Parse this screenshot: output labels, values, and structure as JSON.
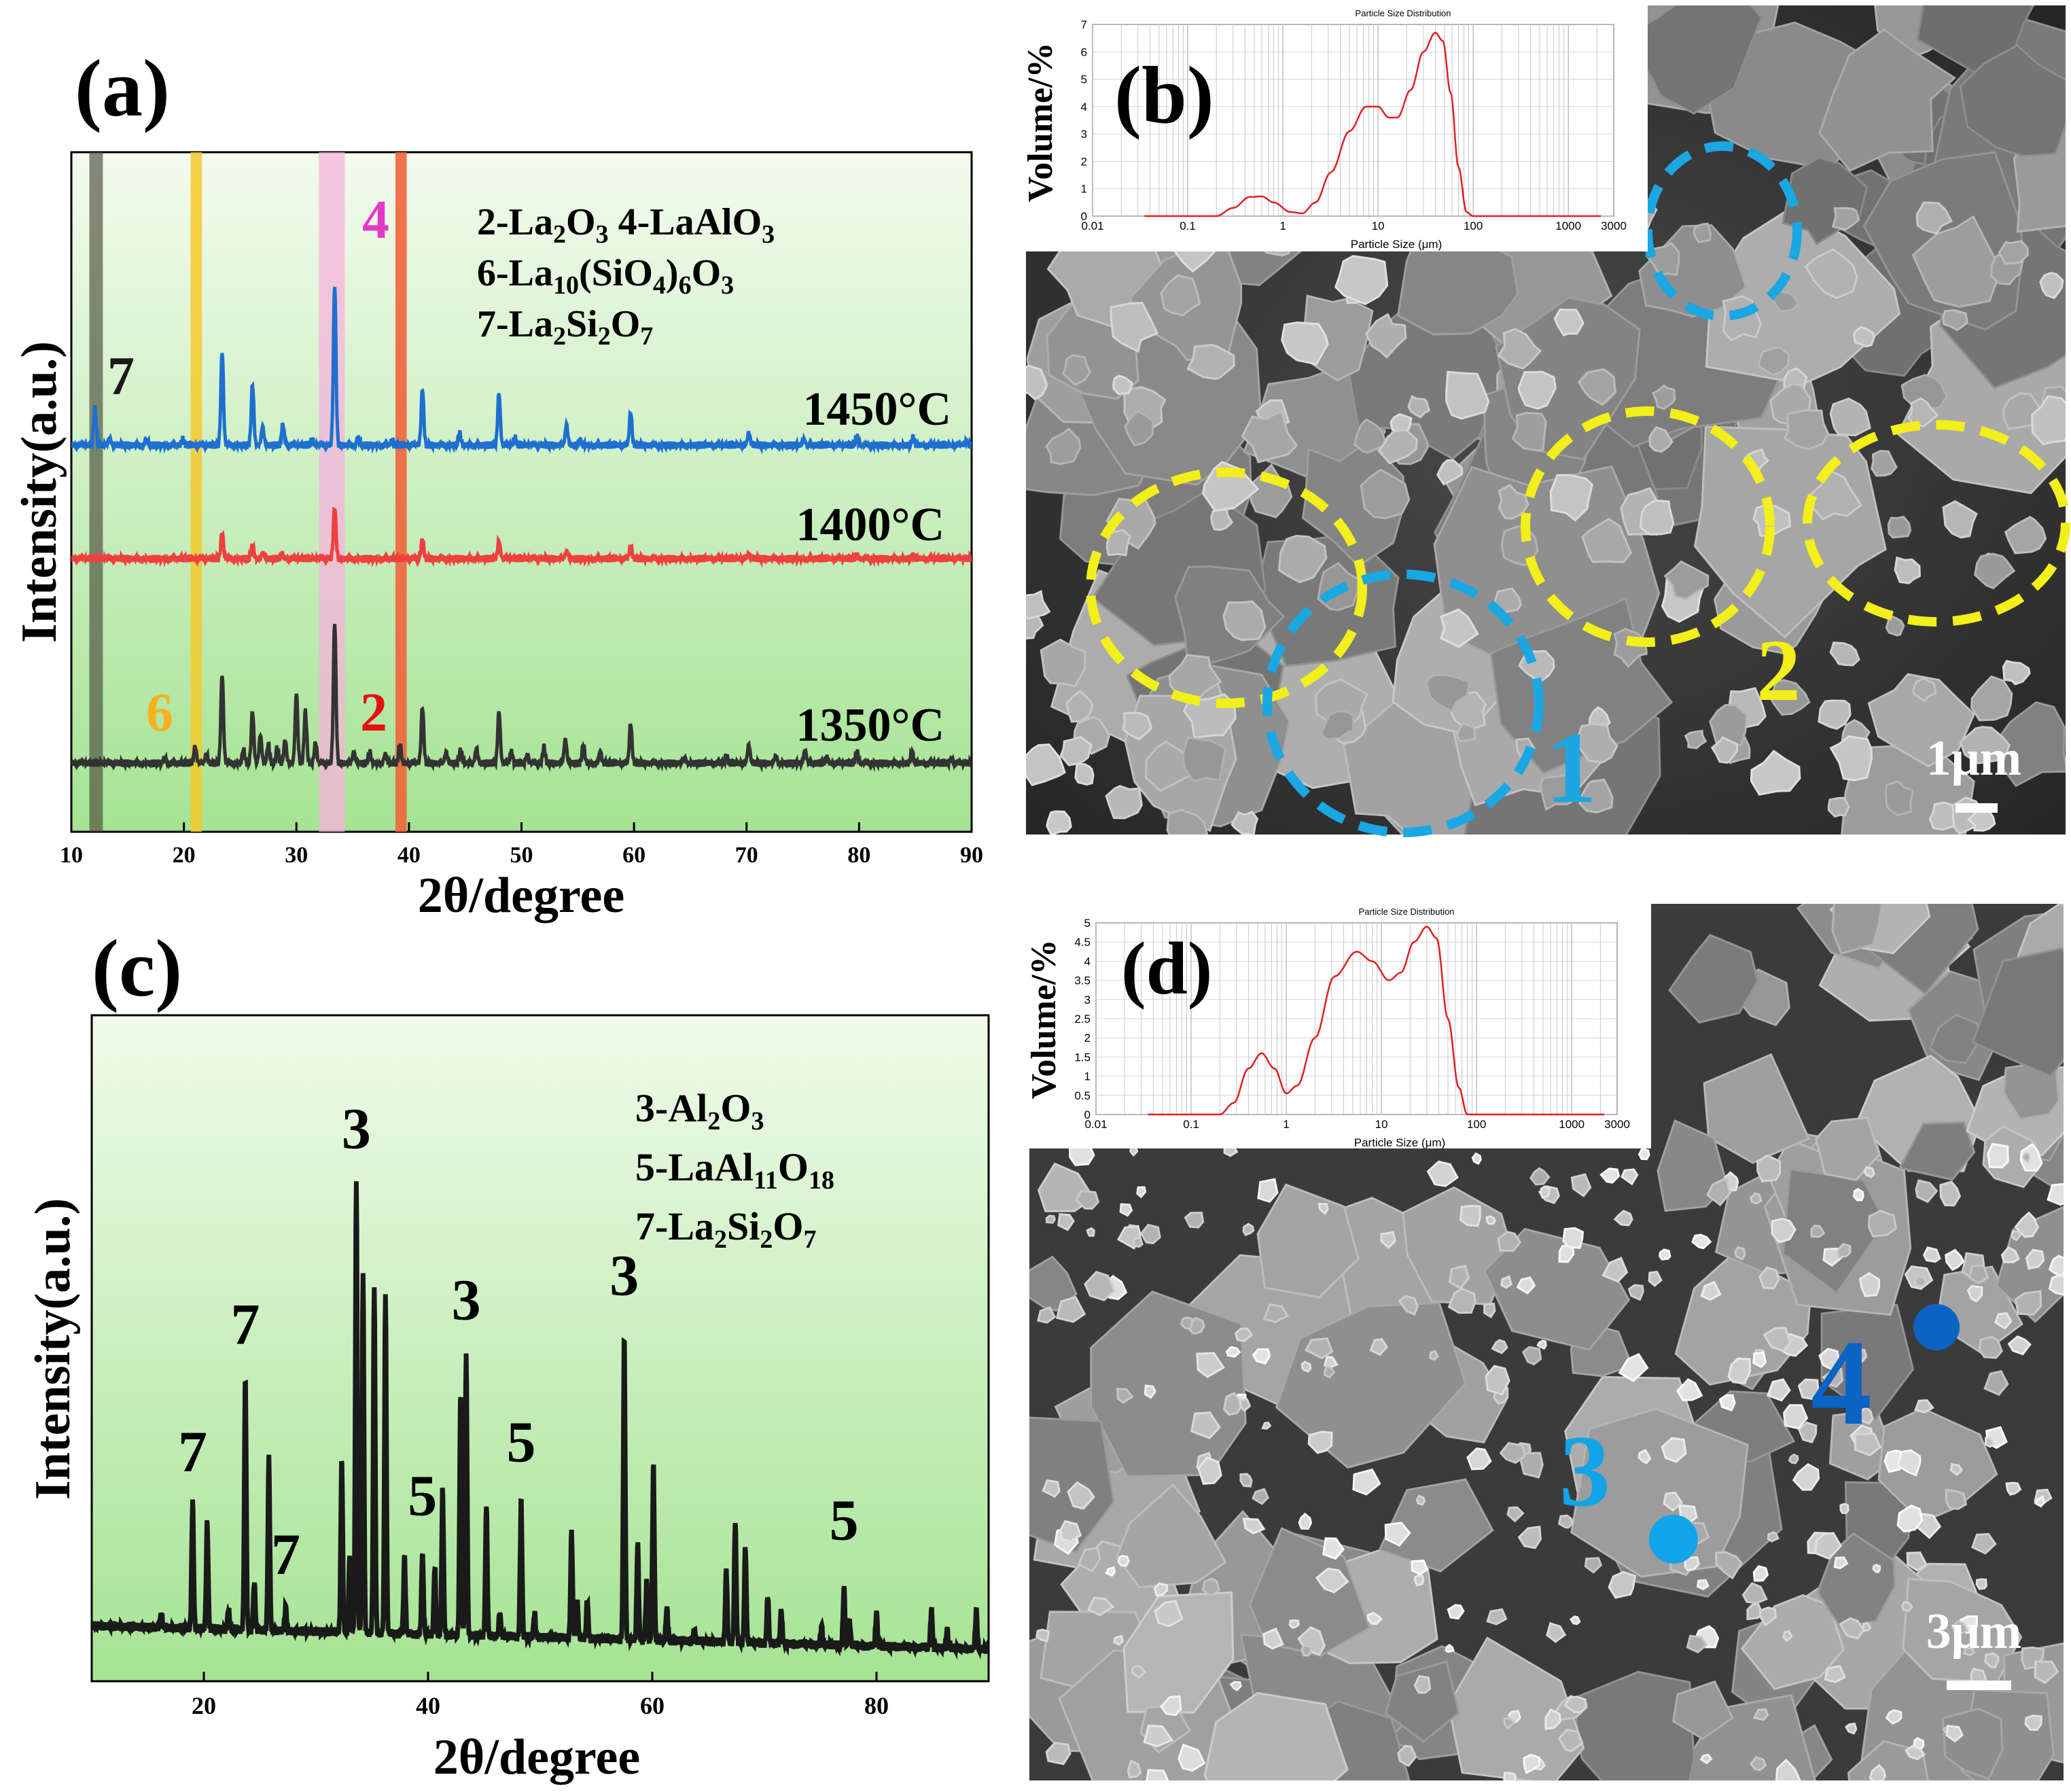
{
  "colors": {
    "bg_light": "#f0fbe6",
    "bg_dark": "#a6e494",
    "black": "#1a1a1a",
    "blue": "#1e6fd0",
    "red": "#ef4040",
    "dark": "#333333",
    "psd_line": "#e02020",
    "yellow_circle": "#f2ef1b",
    "cyan_circle": "#1aa7e3",
    "marker_dark_blue": "#0b63c4",
    "marker_light_blue": "#13a3e8",
    "sem_bg": "#3a3a3a"
  },
  "panel_a": {
    "label": "(a)",
    "xlabel": "2θ/degree",
    "ylabel": "Intensity(a.u.)",
    "legend": [
      {
        "num": "2-La",
        "parts": [
          [
            "2-La",
            ""
          ],
          [
            "2",
            "sub"
          ],
          [
            "O",
            ""
          ],
          [
            "3",
            "sub"
          ],
          [
            "  4-LaAlO",
            ""
          ],
          [
            "3",
            "sub"
          ]
        ]
      },
      {
        "num": "6",
        "parts": [
          [
            "6-La",
            ""
          ],
          [
            "10",
            "sub"
          ],
          [
            "(SiO",
            ""
          ],
          [
            "4",
            "sub"
          ],
          [
            ")",
            ""
          ],
          [
            "6",
            "sub"
          ],
          [
            "O",
            ""
          ],
          [
            "3",
            "sub"
          ]
        ]
      },
      {
        "num": "7",
        "parts": [
          [
            "7-La",
            ""
          ],
          [
            "2",
            "sub"
          ],
          [
            "Si",
            ""
          ],
          [
            "2",
            "sub"
          ],
          [
            "O",
            ""
          ],
          [
            "7",
            "sub"
          ]
        ]
      }
    ],
    "temps": [
      "1450°C",
      "1400°C",
      "1350°C"
    ],
    "markers": [
      {
        "text": "7",
        "color": "#1a1a1a"
      },
      {
        "text": "4",
        "color": "#e33ac6"
      },
      {
        "text": "6",
        "color": "#f5b21e"
      },
      {
        "text": "2",
        "color": "#e41010"
      }
    ],
    "bands": [
      {
        "from": 11.6,
        "to": 12.8,
        "color": "#4a4a3a",
        "opacity": 0.65
      },
      {
        "from": 32.0,
        "to": 34.3,
        "color": "#f6b3dc",
        "opacity": 0.75
      },
      {
        "from": 20.6,
        "to": 21.6,
        "color": "#f5c92a",
        "opacity": 0.85
      },
      {
        "from": 38.8,
        "to": 39.8,
        "color": "#f0643c",
        "opacity": 0.9
      }
    ]
  },
  "panel_c": {
    "label": "(c)",
    "xlabel": "2θ/degree",
    "ylabel": "Intensity(a.u.)",
    "legend": [
      {
        "parts": [
          [
            "3-Al",
            ""
          ],
          [
            "2",
            "sub"
          ],
          [
            "O",
            ""
          ],
          [
            "3",
            "sub"
          ]
        ]
      },
      {
        "parts": [
          [
            "5-LaAl",
            ""
          ],
          [
            "11",
            "sub"
          ],
          [
            "O",
            ""
          ],
          [
            "18",
            "sub"
          ]
        ]
      },
      {
        "parts": [
          [
            "7-La",
            ""
          ],
          [
            "2",
            "sub"
          ],
          [
            "Si",
            ""
          ],
          [
            "2",
            "sub"
          ],
          [
            "O",
            ""
          ],
          [
            "7",
            "sub"
          ]
        ]
      }
    ]
  },
  "panel_b": {
    "label": "(b)",
    "scale_bar": "1μm",
    "particle_labels": [
      "1",
      "2"
    ],
    "psd_title": "Particle Size Distribution",
    "psd_xlabel": "Particle Size (μm)",
    "psd_ylabel": "Volume/%"
  },
  "panel_d": {
    "label": "(d)",
    "scale_bar": "3μm",
    "particle_labels": [
      "3",
      "4"
    ],
    "psd_title": "Particle Size Distribution",
    "psd_xlabel": "Particle Size (μm)",
    "psd_ylabel": "Volume/%"
  },
  "chart_data": [
    {
      "type": "line",
      "title": "",
      "xlabel": "2θ/degree",
      "ylabel": "Intensity(a.u.)",
      "xlim": [
        10,
        90
      ],
      "xticks": [
        10,
        20,
        30,
        40,
        50,
        60,
        70,
        80,
        90
      ],
      "series": [
        {
          "name": "1450°C",
          "color": "#1e6fd0",
          "peaks": [
            [
              12.1,
              0.38
            ],
            [
              13.4,
              0.08
            ],
            [
              16.7,
              0.05
            ],
            [
              19.9,
              0.06
            ],
            [
              23.4,
              1.0
            ],
            [
              26.1,
              0.65
            ],
            [
              27.0,
              0.2
            ],
            [
              28.8,
              0.22
            ],
            [
              31.4,
              0.06
            ],
            [
              33.4,
              1.7
            ],
            [
              35.5,
              0.08
            ],
            [
              38.5,
              0.05
            ],
            [
              41.2,
              0.6
            ],
            [
              44.5,
              0.13
            ],
            [
              48.0,
              0.55
            ],
            [
              49.4,
              0.08
            ],
            [
              54.0,
              0.22
            ],
            [
              55.2,
              0.05
            ],
            [
              59.7,
              0.35
            ],
            [
              70.2,
              0.13
            ],
            [
              75.1,
              0.06
            ],
            [
              79.8,
              0.1
            ],
            [
              84.8,
              0.08
            ],
            [
              89.5,
              0.04
            ]
          ]
        },
        {
          "name": "1400°C",
          "color": "#ef4040",
          "peaks": [
            [
              23.4,
              0.28
            ],
            [
              26.1,
              0.14
            ],
            [
              27.0,
              0.06
            ],
            [
              28.7,
              0.05
            ],
            [
              33.4,
              0.55
            ],
            [
              41.2,
              0.21
            ],
            [
              48.0,
              0.19
            ],
            [
              54.0,
              0.08
            ],
            [
              59.7,
              0.14
            ],
            [
              70.2,
              0.05
            ],
            [
              79.8,
              0.04
            ],
            [
              84.8,
              0.03
            ]
          ]
        },
        {
          "name": "1350°C",
          "color": "#333333",
          "peaks": [
            [
              18.3,
              0.06
            ],
            [
              21.0,
              0.18
            ],
            [
              22.0,
              0.1
            ],
            [
              23.4,
              0.95
            ],
            [
              25.3,
              0.14
            ],
            [
              26.1,
              0.55
            ],
            [
              26.8,
              0.3
            ],
            [
              27.5,
              0.2
            ],
            [
              28.3,
              0.17
            ],
            [
              29.0,
              0.25
            ],
            [
              30.0,
              0.75
            ],
            [
              30.8,
              0.55
            ],
            [
              31.7,
              0.22
            ],
            [
              33.4,
              1.5
            ],
            [
              35.1,
              0.12
            ],
            [
              36.5,
              0.12
            ],
            [
              37.9,
              0.1
            ],
            [
              39.2,
              0.2
            ],
            [
              41.2,
              0.6
            ],
            [
              43.3,
              0.12
            ],
            [
              44.6,
              0.14
            ],
            [
              46.0,
              0.16
            ],
            [
              48.0,
              0.55
            ],
            [
              49.1,
              0.12
            ],
            [
              50.5,
              0.08
            ],
            [
              52.0,
              0.17
            ],
            [
              53.9,
              0.26
            ],
            [
              55.5,
              0.2
            ],
            [
              57.0,
              0.12
            ],
            [
              59.7,
              0.42
            ],
            [
              64.5,
              0.06
            ],
            [
              68.2,
              0.08
            ],
            [
              70.2,
              0.2
            ],
            [
              72.6,
              0.08
            ],
            [
              75.2,
              0.14
            ],
            [
              77.1,
              0.06
            ],
            [
              79.8,
              0.13
            ],
            [
              84.7,
              0.12
            ],
            [
              88.2,
              0.05
            ]
          ]
        }
      ]
    },
    {
      "type": "line",
      "title": "",
      "xlabel": "2θ/degree",
      "ylabel": "Intensity(a.u.)",
      "xlim": [
        10,
        90
      ],
      "xticks": [
        20,
        40,
        60,
        80
      ],
      "series": [
        {
          "name": "",
          "color": "#1a1a1a",
          "peaks": [
            [
              16.2,
              0.03
            ],
            [
              19.0,
              0.26
            ],
            [
              20.3,
              0.22
            ],
            [
              22.2,
              0.04
            ],
            [
              23.7,
              0.52
            ],
            [
              24.5,
              0.1
            ],
            [
              25.8,
              0.35
            ],
            [
              27.3,
              0.05
            ],
            [
              32.3,
              0.36
            ],
            [
              33.0,
              0.15
            ],
            [
              33.6,
              0.92
            ],
            [
              34.2,
              0.73
            ],
            [
              35.2,
              0.71
            ],
            [
              36.2,
              0.69
            ],
            [
              37.9,
              0.16
            ],
            [
              39.5,
              0.17
            ],
            [
              40.6,
              0.14
            ],
            [
              41.3,
              0.3
            ],
            [
              42.9,
              0.5
            ],
            [
              43.4,
              0.57
            ],
            [
              45.2,
              0.27
            ],
            [
              46.4,
              0.05
            ],
            [
              48.3,
              0.28
            ],
            [
              49.5,
              0.05
            ],
            [
              52.8,
              0.22
            ],
            [
              53.3,
              0.08
            ],
            [
              54.2,
              0.08
            ],
            [
              57.5,
              0.62
            ],
            [
              58.7,
              0.2
            ],
            [
              59.5,
              0.12
            ],
            [
              60.1,
              0.36
            ],
            [
              61.3,
              0.07
            ],
            [
              63.8,
              0.02
            ],
            [
              66.6,
              0.15
            ],
            [
              67.4,
              0.25
            ],
            [
              68.3,
              0.2
            ],
            [
              70.3,
              0.1
            ],
            [
              71.5,
              0.07
            ],
            [
              75.1,
              0.04
            ],
            [
              77.1,
              0.12
            ],
            [
              77.6,
              0.05
            ],
            [
              80.0,
              0.07
            ],
            [
              84.9,
              0.08
            ],
            [
              86.3,
              0.04
            ],
            [
              88.9,
              0.08
            ]
          ]
        }
      ],
      "annotations": [
        {
          "text": "7",
          "x": 19.0
        },
        {
          "text": "7",
          "x": 23.7
        },
        {
          "text": "7",
          "x": 27.3
        },
        {
          "text": "3",
          "x": 33.6
        },
        {
          "text": "5",
          "x": 39.5
        },
        {
          "text": "3",
          "x": 43.4
        },
        {
          "text": "5",
          "x": 48.3
        },
        {
          "text": "3",
          "x": 57.5
        },
        {
          "text": "5",
          "x": 77.1
        }
      ]
    },
    {
      "type": "line",
      "title": "Particle Size Distribution",
      "xlabel": "Particle Size (μm)",
      "ylabel": "Volume/%",
      "xscale": "log",
      "xlim": [
        0.01,
        3000
      ],
      "ylim": [
        0,
        7
      ],
      "xticks": [
        "0.01",
        "0.1",
        "1",
        "10",
        "100",
        "1000",
        "3000"
      ],
      "yticks": [
        0,
        1,
        2,
        3,
        4,
        5,
        6,
        7
      ],
      "series": [
        {
          "name": "",
          "color": "#e02020",
          "points": [
            [
              0.2,
              0
            ],
            [
              0.3,
              0.3
            ],
            [
              0.45,
              0.7
            ],
            [
              0.6,
              0.72
            ],
            [
              0.8,
              0.5
            ],
            [
              1.2,
              0.15
            ],
            [
              1.6,
              0.1
            ],
            [
              2.2,
              0.5
            ],
            [
              3.2,
              1.6
            ],
            [
              5,
              3.1
            ],
            [
              7.5,
              4.0
            ],
            [
              10,
              4.0
            ],
            [
              13,
              3.6
            ],
            [
              16,
              3.6
            ],
            [
              22,
              4.6
            ],
            [
              30,
              6.0
            ],
            [
              40,
              6.7
            ],
            [
              48,
              6.4
            ],
            [
              58,
              4.5
            ],
            [
              70,
              1.8
            ],
            [
              85,
              0.15
            ],
            [
              100,
              0
            ]
          ]
        }
      ]
    },
    {
      "type": "line",
      "title": "Particle Size Distribution",
      "xlabel": "Particle Size (μm)",
      "ylabel": "Volume/%",
      "xscale": "log",
      "xlim": [
        0.01,
        3000
      ],
      "ylim": [
        0,
        5
      ],
      "xticks": [
        "0.01",
        "0.1",
        "1",
        "10",
        "100",
        "1000",
        "3000"
      ],
      "yticks": [
        "0",
        "0.5",
        "1",
        "1.5",
        "2",
        "2.5",
        "3",
        "3.5",
        "4",
        "4.5",
        "5"
      ],
      "series": [
        {
          "name": "",
          "color": "#e02020",
          "points": [
            [
              0.2,
              0
            ],
            [
              0.28,
              0.3
            ],
            [
              0.4,
              1.2
            ],
            [
              0.55,
              1.6
            ],
            [
              0.75,
              1.2
            ],
            [
              1.0,
              0.55
            ],
            [
              1.3,
              0.75
            ],
            [
              2,
              2.0
            ],
            [
              3.2,
              3.6
            ],
            [
              5.5,
              4.25
            ],
            [
              8,
              4.0
            ],
            [
              12,
              3.5
            ],
            [
              16,
              3.7
            ],
            [
              22,
              4.5
            ],
            [
              30,
              4.9
            ],
            [
              38,
              4.6
            ],
            [
              50,
              2.5
            ],
            [
              65,
              0.7
            ],
            [
              80,
              0
            ]
          ]
        }
      ]
    }
  ]
}
